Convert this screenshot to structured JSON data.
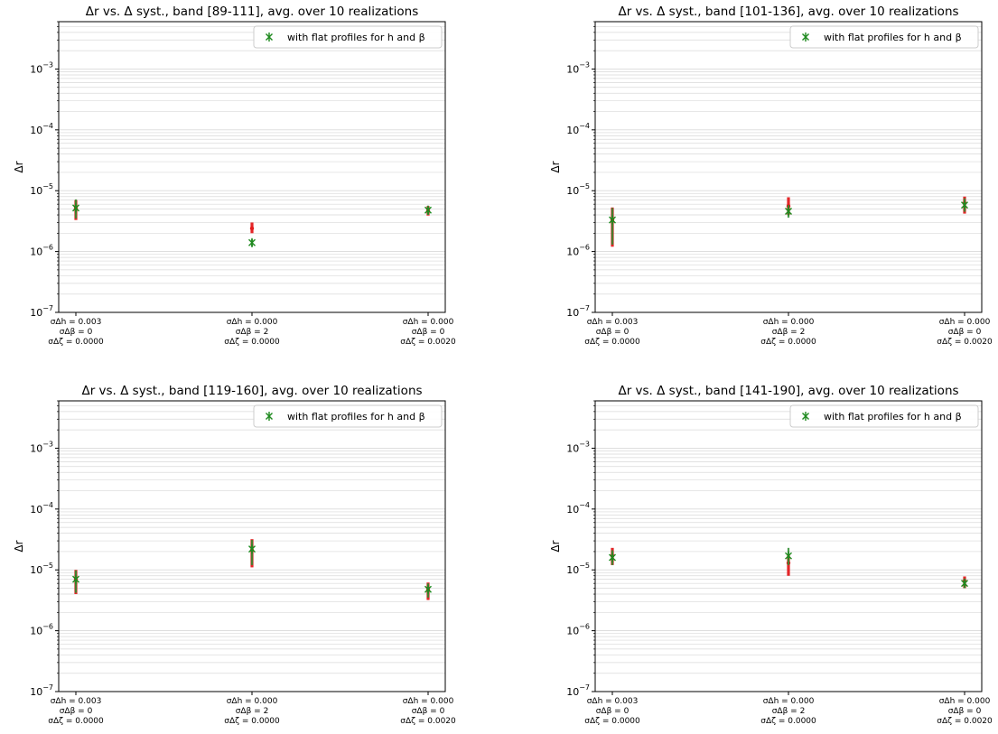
{
  "colors": {
    "errorbar_main": "#e31a1c",
    "errorbar_flat": "#2e8b2e",
    "marker_main": "#e31a1c",
    "marker_flat": "#1f8a1f",
    "gridline": "#d9d9d9",
    "axis": "#000000"
  },
  "chart_data": [
    {
      "type": "scatter",
      "title": "Δr vs. Δ syst., band [89-111], avg. over 10 realizations",
      "ylabel": "Δr",
      "yscale": "log",
      "ylim": [
        1e-07,
        0.006
      ],
      "yticks": [
        "10^-7",
        "10^-6",
        "10^-5",
        "10^-4",
        "10^-3"
      ],
      "grid": "horizontal minor+major",
      "legend": {
        "placement": "top-right",
        "entries": [
          {
            "label": "with flat profiles for h and β",
            "marker": "x-cross"
          }
        ]
      },
      "categories": [
        {
          "lines": [
            "σΔh = 0.003",
            "σΔβ = 0",
            "σΔζ = 0.0000"
          ]
        },
        {
          "lines": [
            "σΔh = 0.000",
            "σΔβ = 2",
            "σΔζ = 0.0000"
          ]
        },
        {
          "lines": [
            "σΔh = 0.000",
            "σΔβ = 0",
            "σΔζ = 0.0020"
          ]
        }
      ],
      "series": [
        {
          "style": "main",
          "values": [
            5.2e-06,
            2.4e-06,
            4.7e-06
          ],
          "err_low": [
            3.3e-06,
            2e-06,
            3.9e-06
          ],
          "err_high": [
            7e-06,
            3e-06,
            5.6e-06
          ]
        },
        {
          "name": "with flat profiles for h and β",
          "style": "flat",
          "values": [
            5.2e-06,
            1.4e-06,
            4.8e-06
          ],
          "err_low": [
            3.5e-06,
            1.2e-06,
            4e-06
          ],
          "err_high": [
            7.2e-06,
            1.6e-06,
            5.5e-06
          ]
        }
      ]
    },
    {
      "type": "scatter",
      "title": "Δr vs. Δ syst., band [101-136], avg. over 10 realizations",
      "ylabel": "Δr",
      "yscale": "log",
      "ylim": [
        1e-07,
        0.006
      ],
      "yticks": [
        "10^-7",
        "10^-6",
        "10^-5",
        "10^-4",
        "10^-3"
      ],
      "grid": "horizontal minor+major",
      "legend": {
        "placement": "top-right",
        "entries": [
          {
            "label": "with flat profiles for h and β",
            "marker": "x-cross"
          }
        ]
      },
      "categories": [
        {
          "lines": [
            "σΔh = 0.003",
            "σΔβ = 0",
            "σΔζ = 0.0000"
          ]
        },
        {
          "lines": [
            "σΔh = 0.000",
            "σΔβ = 2",
            "σΔζ = 0.0000"
          ]
        },
        {
          "lines": [
            "σΔh = 0.000",
            "σΔβ = 0",
            "σΔζ = 0.0020"
          ]
        }
      ],
      "series": [
        {
          "style": "main",
          "values": [
            3.3e-06,
            5.6e-06,
            6.2e-06
          ],
          "err_low": [
            1.2e-06,
            4e-06,
            4.2e-06
          ],
          "err_high": [
            5.3e-06,
            7.8e-06,
            8e-06
          ]
        },
        {
          "name": "with flat profiles for h and β",
          "style": "flat",
          "values": [
            3.3e-06,
            4.6e-06,
            5.8e-06
          ],
          "err_low": [
            1.3e-06,
            3.6e-06,
            4.5e-06
          ],
          "err_high": [
            5.2e-06,
            5.8e-06,
            7.5e-06
          ]
        }
      ]
    },
    {
      "type": "scatter",
      "title": "Δr vs. Δ syst., band [119-160], avg. over 10 realizations",
      "ylabel": "Δr",
      "yscale": "log",
      "ylim": [
        1e-07,
        0.006
      ],
      "yticks": [
        "10^-7",
        "10^-6",
        "10^-5",
        "10^-4",
        "10^-3"
      ],
      "grid": "horizontal minor+major",
      "legend": {
        "placement": "top-right",
        "entries": [
          {
            "label": "with flat profiles for h and β",
            "marker": "x-cross"
          }
        ]
      },
      "categories": [
        {
          "lines": [
            "σΔh = 0.003",
            "σΔβ = 0",
            "σΔζ = 0.0000"
          ]
        },
        {
          "lines": [
            "σΔh = 0.000",
            "σΔβ = 2",
            "σΔζ = 0.0000"
          ]
        },
        {
          "lines": [
            "σΔh = 0.000",
            "σΔβ = 0",
            "σΔζ = 0.0020"
          ]
        }
      ],
      "series": [
        {
          "style": "main",
          "values": [
            7e-06,
            2.1e-05,
            4.7e-06
          ],
          "err_low": [
            4e-06,
            1.1e-05,
            3.2e-06
          ],
          "err_high": [
            1e-05,
            3.2e-05,
            6.2e-06
          ]
        },
        {
          "name": "with flat profiles for h and β",
          "style": "flat",
          "values": [
            7e-06,
            2.2e-05,
            4.8e-06
          ],
          "err_low": [
            4.2e-06,
            1.2e-05,
            3.5e-06
          ],
          "err_high": [
            9.8e-06,
            3.1e-05,
            6e-06
          ]
        }
      ]
    },
    {
      "type": "scatter",
      "title": "Δr vs. Δ syst., band [141-190], avg. over 10 realizations",
      "ylabel": "Δr",
      "yscale": "log",
      "ylim": [
        1e-07,
        0.006
      ],
      "yticks": [
        "10^-7",
        "10^-6",
        "10^-5",
        "10^-4",
        "10^-3"
      ],
      "grid": "horizontal minor+major",
      "legend": {
        "placement": "top-right",
        "entries": [
          {
            "label": "with flat profiles for h and β",
            "marker": "x-cross"
          }
        ]
      },
      "categories": [
        {
          "lines": [
            "σΔh = 0.003",
            "σΔβ = 0",
            "σΔζ = 0.0000"
          ]
        },
        {
          "lines": [
            "σΔh = 0.000",
            "σΔβ = 2",
            "σΔζ = 0.0000"
          ]
        },
        {
          "lines": [
            "σΔh = 0.000",
            "σΔβ = 0",
            "σΔζ = 0.0020"
          ]
        }
      ],
      "series": [
        {
          "style": "main",
          "values": [
            1.7e-05,
            1.3e-05,
            6.5e-06
          ],
          "err_low": [
            1.2e-05,
            8e-06,
            5e-06
          ],
          "err_high": [
            2.3e-05,
            1.8e-05,
            7.8e-06
          ]
        },
        {
          "name": "with flat profiles for h and β",
          "style": "flat",
          "values": [
            1.6e-05,
            1.7e-05,
            6e-06
          ],
          "err_low": [
            1.2e-05,
            1.2e-05,
            5e-06
          ],
          "err_high": [
            2.1e-05,
            2.3e-05,
            7.2e-06
          ]
        }
      ]
    }
  ]
}
